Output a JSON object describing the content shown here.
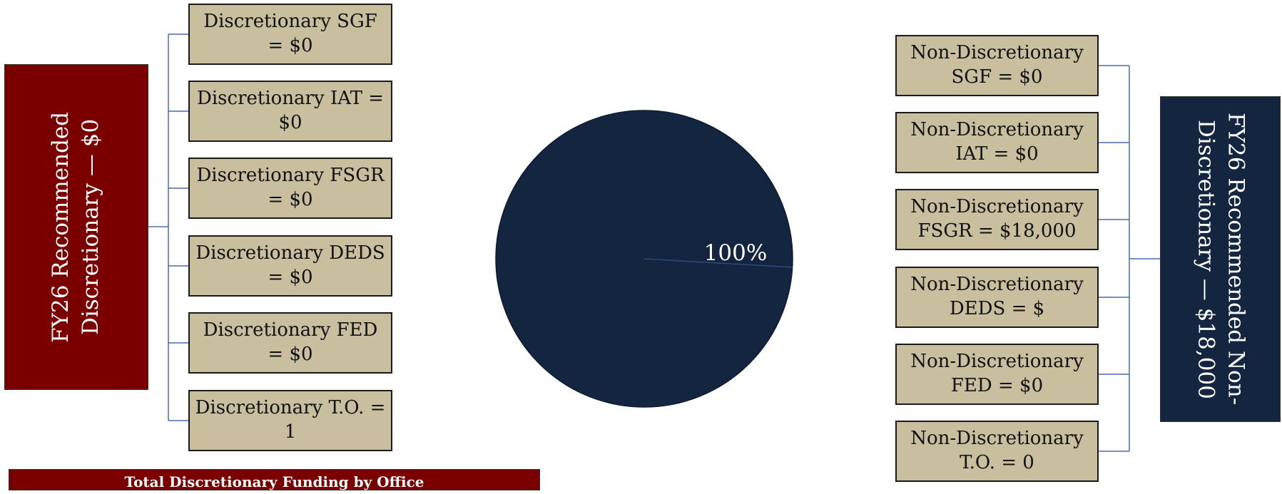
{
  "discretionary": {
    "title": "FY26 Recommended Discretionary — $0",
    "color": "#7a0000",
    "items": [
      {
        "label": "Discretionary SGF = $0"
      },
      {
        "label": "Discretionary IAT = $0"
      },
      {
        "label": "Discretionary FSGR = $0"
      },
      {
        "label": "Discretionary DEDS = $0"
      },
      {
        "label": "Discretionary FED = $0"
      },
      {
        "label": "Discretionary T.O. = 1"
      }
    ]
  },
  "non_discretionary": {
    "title": "FY26 Recommended Non-Discretionary — $18,000",
    "color": "#13253f",
    "items": [
      {
        "label": "Non-Discretionary SGF = $0"
      },
      {
        "label": "Non-Discretionary IAT = $0"
      },
      {
        "label": "Non-Discretionary FSGR = $18,000"
      },
      {
        "label": "Non-Discretionary DEDS = $"
      },
      {
        "label": "Non-Discretionary FED = $0"
      },
      {
        "label": "Non-Discretionary T.O. = 0"
      }
    ]
  },
  "pie": {
    "slice_label": "100%",
    "fill": "#13253f"
  },
  "footer": {
    "title": "Total Discretionary Funding by Office"
  }
}
